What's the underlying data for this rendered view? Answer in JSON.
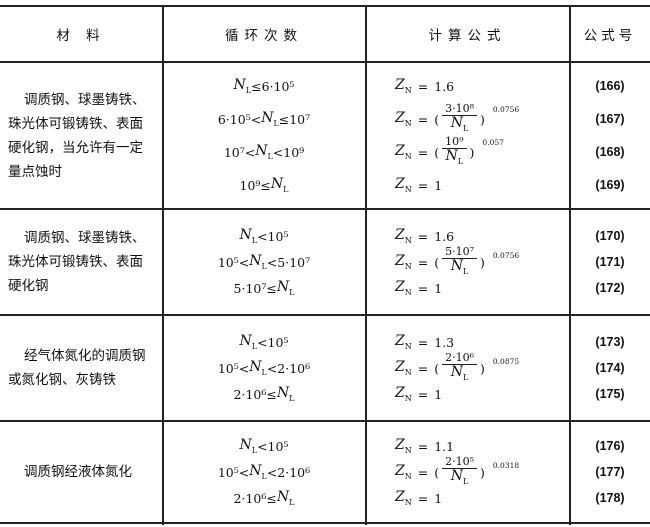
{
  "symbols": {
    "N": "N",
    "L": "L",
    "Z": "Z",
    "Zsub": "N",
    "eq": "=",
    "lp": "(",
    "rp": ")"
  },
  "header": {
    "material": "材  料",
    "cycles": "循环次数",
    "formula": "计算公式",
    "number": "公式号"
  },
  "rows": [
    {
      "material": [
        "调质钢、球墨铸铁、",
        "珠光体可锻铸铁、表面",
        "硬化钢，当允许有一定",
        "量点蚀时"
      ],
      "cycles": [
        {
          "pre": "",
          "post": "≤6·10⁵"
        },
        {
          "pre": "6·10⁵<",
          "post": "≤10⁷"
        },
        {
          "pre": "10⁷<",
          "post": "<10⁹"
        },
        {
          "pre": "10⁹≤",
          "post": ""
        }
      ],
      "formulas": [
        {
          "value": "1.6"
        },
        {
          "numerator": "3·10⁸",
          "exponent": "0.0756"
        },
        {
          "numerator": "10⁹",
          "exponent": "0.057"
        },
        {
          "value": "1"
        }
      ],
      "numbers": [
        "(166)",
        "(167)",
        "(168)",
        "(169)"
      ]
    },
    {
      "material": [
        "调质钢、球墨铸铁、",
        "珠光体可锻铸铁、表面",
        "硬化钢"
      ],
      "cycles": [
        {
          "pre": "",
          "post": "<10⁵"
        },
        {
          "pre": "10⁵<",
          "post": "<5·10⁷"
        },
        {
          "pre": "5·10⁷≤",
          "post": ""
        }
      ],
      "formulas": [
        {
          "value": "1.6"
        },
        {
          "numerator": "5·10⁷",
          "exponent": "0.0756"
        },
        {
          "value": "1"
        }
      ],
      "numbers": [
        "(170)",
        "(171)",
        "(172)"
      ]
    },
    {
      "material": [
        "经气体氮化的调质钢",
        "或氮化钢、灰铸铁"
      ],
      "cycles": [
        {
          "pre": "",
          "post": "<10⁵"
        },
        {
          "pre": "10⁵<",
          "post": "<2·10⁶"
        },
        {
          "pre": "2·10⁶≤",
          "post": ""
        }
      ],
      "formulas": [
        {
          "value": "1.3"
        },
        {
          "numerator": "2·10⁶",
          "exponent": "0.0875"
        },
        {
          "value": "1"
        }
      ],
      "numbers": [
        "(173)",
        "(174)",
        "(175)"
      ]
    },
    {
      "material": [
        "调质钢经液体氮化"
      ],
      "cycles": [
        {
          "pre": "",
          "post": "<10⁵"
        },
        {
          "pre": "10⁵<",
          "post": "<2·10⁶"
        },
        {
          "pre": "2·10⁶≤",
          "post": ""
        }
      ],
      "formulas": [
        {
          "value": "1.1"
        },
        {
          "numerator": "2·10⁵",
          "exponent": "0.0318"
        },
        {
          "value": "1"
        }
      ],
      "numbers": [
        "(176)",
        "(177)",
        "(178)"
      ]
    }
  ]
}
